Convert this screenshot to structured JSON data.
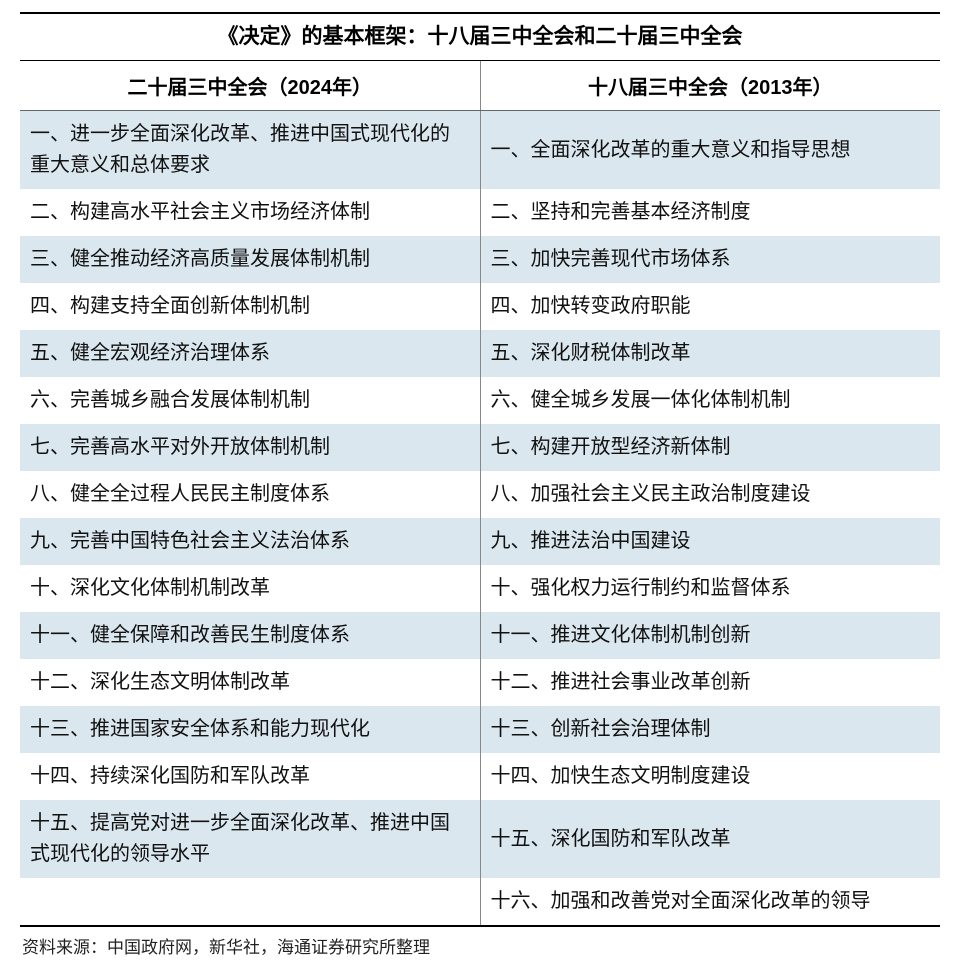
{
  "title": "《决定》的基本框架：十八届三中全会和二十届三中全会",
  "columns": {
    "left": "二十届三中全会（2024年）",
    "right": "十八届三中全会（2013年）"
  },
  "rows": [
    {
      "left": "一、进一步全面深化改革、推进中国式现代化的重大意义和总体要求",
      "right": "一、全面深化改革的重大意义和指导思想"
    },
    {
      "left": "二、构建高水平社会主义市场经济体制",
      "right": "二、坚持和完善基本经济制度"
    },
    {
      "left": "三、健全推动经济高质量发展体制机制",
      "right": "三、加快完善现代市场体系"
    },
    {
      "left": "四、构建支持全面创新体制机制",
      "right": "四、加快转变政府职能"
    },
    {
      "left": "五、健全宏观经济治理体系",
      "right": "五、深化财税体制改革"
    },
    {
      "left": "六、完善城乡融合发展体制机制",
      "right": "六、健全城乡发展一体化体制机制"
    },
    {
      "left": "七、完善高水平对外开放体制机制",
      "right": "七、构建开放型经济新体制"
    },
    {
      "left": "八、健全全过程人民民主制度体系",
      "right": "八、加强社会主义民主政治制度建设"
    },
    {
      "left": "九、完善中国特色社会主义法治体系",
      "right": "九、推进法治中国建设"
    },
    {
      "left": "十、深化文化体制机制改革",
      "right": "十、强化权力运行制约和监督体系"
    },
    {
      "left": "十一、健全保障和改善民生制度体系",
      "right": "十一、推进文化体制机制创新"
    },
    {
      "left": "十二、深化生态文明体制改革",
      "right": "十二、推进社会事业改革创新"
    },
    {
      "left": "十三、推进国家安全体系和能力现代化",
      "right": "十三、创新社会治理体制"
    },
    {
      "left": "十四、持续深化国防和军队改革",
      "right": "十四、加快生态文明制度建设"
    },
    {
      "left": "十五、提高党对进一步全面深化改革、推进中国式现代化的领导水平",
      "right": "十五、深化国防和军队改革"
    },
    {
      "left": "",
      "right": "十六、加强和改善党对全面深化改革的领导"
    }
  ],
  "source": "资料来源：中国政府网，新华社，海通证券研究所整理",
  "styles": {
    "alt_row_bg": "#dbe7ef",
    "background": "#ffffff",
    "border_color_thick": "#000000",
    "border_color_thin": "#888888",
    "title_fontsize": 21,
    "header_fontsize": 20,
    "cell_fontsize": 20,
    "source_fontsize": 17,
    "columns_ratio": [
      0.5,
      0.5
    ]
  }
}
